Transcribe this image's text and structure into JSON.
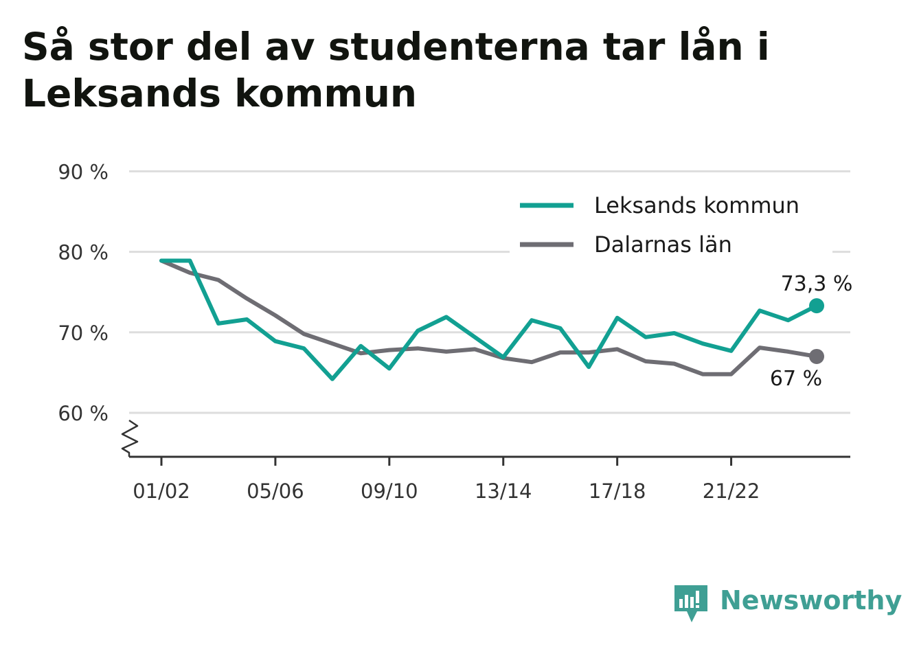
{
  "title": "Så stor del av studenterna tar lån i Leksands kommun",
  "brand": {
    "name": "Newsworthy",
    "icon": "newsworthy-logo-icon",
    "color": "#3f9f94"
  },
  "chart_data": {
    "type": "line",
    "title": "Så stor del av studenterna tar lån i Leksands kommun",
    "x": [
      "01/02",
      "02/03",
      "03/04",
      "04/05",
      "05/06",
      "06/07",
      "07/08",
      "08/09",
      "09/10",
      "10/11",
      "11/12",
      "12/13",
      "13/14",
      "14/15",
      "15/16",
      "16/17",
      "17/18",
      "18/19",
      "19/20",
      "20/21",
      "21/22",
      "22/23",
      "23/24",
      "24/25"
    ],
    "x_tick_labels": [
      "01/02",
      "05/06",
      "09/10",
      "13/14",
      "17/18",
      "21/22"
    ],
    "y_ticks": [
      60,
      70,
      80,
      90
    ],
    "y_tick_labels": [
      "60 %",
      "70 %",
      "80 %",
      "90 %"
    ],
    "ylim": [
      54.5,
      90
    ],
    "y_axis_break": true,
    "grid": true,
    "legend_position": "top-right",
    "series": [
      {
        "name": "Leksands kommun",
        "color": "#12a092",
        "values": [
          78.9,
          78.9,
          71.1,
          71.6,
          68.9,
          68.0,
          64.2,
          68.3,
          65.5,
          70.2,
          71.9,
          69.4,
          66.9,
          71.5,
          70.5,
          65.7,
          71.8,
          69.4,
          69.9,
          68.6,
          67.7,
          72.7,
          71.5,
          73.3
        ],
        "end_label": "73,3 %"
      },
      {
        "name": "Dalarnas län",
        "color": "#6e6d73",
        "values": [
          78.9,
          77.4,
          76.5,
          74.2,
          72.1,
          69.8,
          68.6,
          67.4,
          67.8,
          68.0,
          67.6,
          67.9,
          66.8,
          66.3,
          67.5,
          67.5,
          67.9,
          66.4,
          66.1,
          64.8,
          64.8,
          68.1,
          67.6,
          67.0
        ],
        "end_label": "67 %"
      }
    ]
  }
}
